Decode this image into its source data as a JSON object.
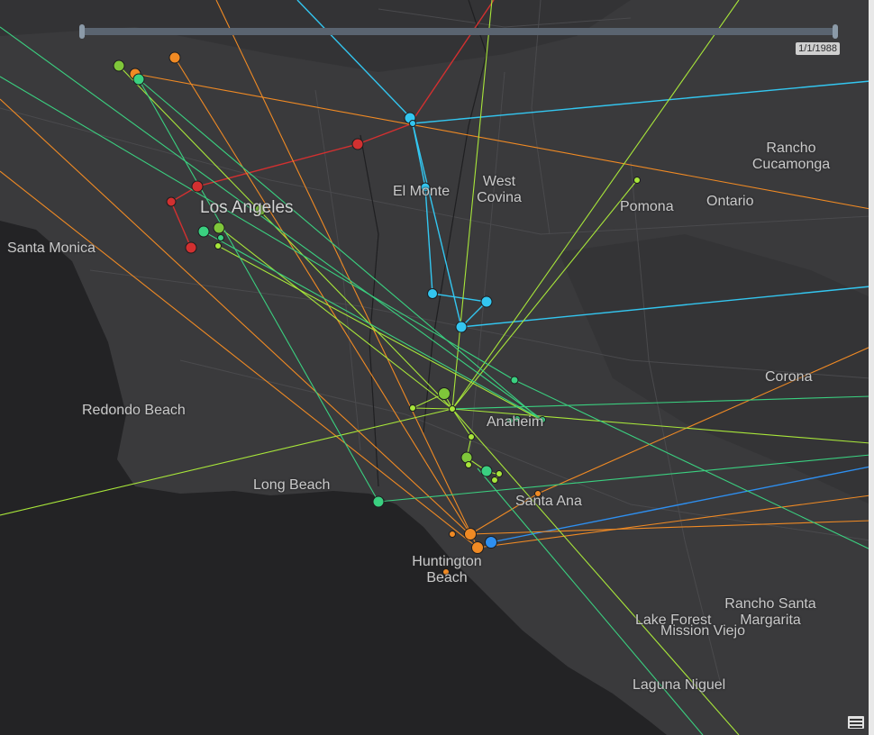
{
  "map": {
    "cities": {
      "los_angeles": "Los Angeles",
      "santa_monica": "Santa Monica",
      "el_monte": "El Monte",
      "west_covina": "West Covina",
      "pomona": "Pomona",
      "ontario": "Ontario",
      "rancho_cucamonga": "Rancho Cucamonga",
      "corona": "Corona",
      "redondo_beach": "Redondo Beach",
      "long_beach": "Long Beach",
      "anaheim": "Anaheim",
      "santa_ana": "Santa Ana",
      "huntington_beach": "Huntington Beach",
      "lake_forest": "Lake Forest",
      "mission_viejo": "Mission Viejo",
      "rancho_santa_margarita": "Rancho Santa Margarita",
      "laguna_niguel": "Laguna Niguel"
    }
  },
  "time_slider": {
    "date_label": "1/1/1988"
  },
  "colors": {
    "land": "#3a3a3c",
    "water": "#232325",
    "route_cyan": "#33c6f0",
    "route_red": "#d23030",
    "route_orange": "#f08a24",
    "route_lime": "#a8e63a",
    "route_green": "#3ad080",
    "route_blue": "#2e8ff0"
  },
  "icons": {
    "legend_button": "legend-icon"
  }
}
